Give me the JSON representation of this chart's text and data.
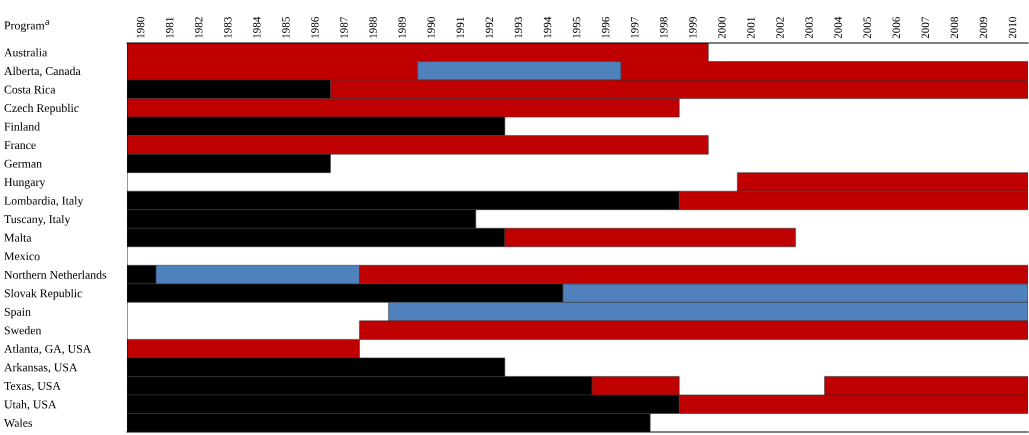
{
  "chart_data": {
    "type": "bar",
    "orientation": "horizontal",
    "ylabel": "Program$^{a}$",
    "categories": [
      "Australia",
      "Alberta, Canada",
      "Costa Rica",
      "Czech Republic",
      "Finland",
      "France",
      "German",
      "Hungary",
      "Lombardia, Italy",
      "Tuscany, Italy",
      "Malta",
      "Mexico",
      "Northern Netherlands",
      "Slovak Republic",
      "Spain",
      "Sweden",
      "Atlanta, GA, USA",
      "Arkansas, USA",
      "Texas, USA",
      "Utah, USA",
      "Wales"
    ],
    "xlim": [
      1980,
      2011
    ],
    "xticks": [
      {
        "value": 1980.5,
        "label": "1980"
      },
      {
        "value": 1981.5,
        "label": "1981"
      },
      {
        "value": 1982.5,
        "label": "1982"
      },
      {
        "value": 1983.5,
        "label": "1983"
      },
      {
        "value": 1984.5,
        "label": "1984"
      },
      {
        "value": 1985.5,
        "label": "1985"
      },
      {
        "value": 1986.5,
        "label": "1986"
      },
      {
        "value": 1987.5,
        "label": "1987"
      },
      {
        "value": 1988.5,
        "label": "1988"
      },
      {
        "value": 1989.5,
        "label": "1989"
      },
      {
        "value": 1990.5,
        "label": "1990"
      },
      {
        "value": 1991.5,
        "label": "1991"
      },
      {
        "value": 1992.5,
        "label": "1992"
      },
      {
        "value": 1993.5,
        "label": "1993"
      },
      {
        "value": 1994.5,
        "label": "1994"
      },
      {
        "value": 1995.5,
        "label": "1995"
      },
      {
        "value": 1996.5,
        "label": "1996"
      },
      {
        "value": 1997.5,
        "label": "1997"
      },
      {
        "value": 1998.5,
        "label": "1998"
      },
      {
        "value": 1999.5,
        "label": "1999"
      },
      {
        "value": 2000.5,
        "label": "2000"
      },
      {
        "value": 2001.5,
        "label": "2001"
      },
      {
        "value": 2002.5,
        "label": "2002"
      },
      {
        "value": 2003.5,
        "label": "2003"
      },
      {
        "value": 2004.5,
        "label": "2004"
      },
      {
        "value": 2005.5,
        "label": "2005"
      },
      {
        "value": 2006.5,
        "label": "2006"
      },
      {
        "value": 2007.5,
        "label": "2007"
      },
      {
        "value": 2008.5,
        "label": "2008"
      },
      {
        "value": 2009.5,
        "label": "2009"
      },
      {
        "value": 2010.5,
        "label": "2010"
      }
    ],
    "grid": false,
    "legend": false,
    "series": [
      {
        "base": [
          1980,
          1980,
          1980,
          1980,
          1980,
          1980,
          1980,
          2001,
          1980,
          1980,
          1980,
          null,
          1980,
          1980,
          1989,
          1988,
          1980,
          1980,
          1980,
          1980,
          1980
        ],
        "values": [
          20,
          10,
          7,
          19,
          13,
          20,
          7,
          10,
          19,
          12,
          13,
          null,
          1,
          15,
          22,
          23,
          8,
          13,
          16,
          19,
          18
        ],
        "colors": [
          "#c00000",
          "#c00000",
          "#000000",
          "#c00000",
          "#000000",
          "#c00000",
          "#000000",
          "#c00000",
          "#000000",
          "#000000",
          "#000000",
          null,
          "#000000",
          "#000000",
          "#4f81bd",
          "#c00000",
          "#c00000",
          "#000000",
          "#000000",
          "#000000",
          "#000000"
        ]
      },
      {
        "base": [
          null,
          1990,
          1987,
          null,
          null,
          null,
          null,
          null,
          1999,
          null,
          1993,
          null,
          1981,
          1995,
          null,
          null,
          null,
          null,
          1996,
          1999,
          null
        ],
        "values": [
          null,
          7,
          24,
          null,
          null,
          null,
          null,
          null,
          12,
          null,
          10,
          null,
          7,
          16,
          null,
          null,
          null,
          null,
          3,
          12,
          null
        ],
        "colors": [
          null,
          "#4f81bd",
          "#c00000",
          null,
          null,
          null,
          null,
          null,
          "#c00000",
          null,
          "#c00000",
          null,
          "#4f81bd",
          "#4f81bd",
          null,
          null,
          null,
          null,
          "#c00000",
          "#c00000",
          null
        ]
      },
      {
        "base": [
          null,
          1997,
          null,
          null,
          null,
          null,
          null,
          null,
          null,
          null,
          null,
          null,
          1988,
          null,
          null,
          null,
          null,
          null,
          2004,
          null,
          null
        ],
        "values": [
          null,
          14,
          null,
          null,
          null,
          null,
          null,
          null,
          null,
          null,
          null,
          null,
          23,
          null,
          null,
          null,
          null,
          null,
          7,
          null,
          null
        ],
        "colors": [
          null,
          "#c00000",
          null,
          null,
          null,
          null,
          null,
          null,
          null,
          null,
          null,
          null,
          "#c00000",
          null,
          null,
          null,
          null,
          null,
          "#c00000",
          null,
          null
        ]
      }
    ]
  }
}
